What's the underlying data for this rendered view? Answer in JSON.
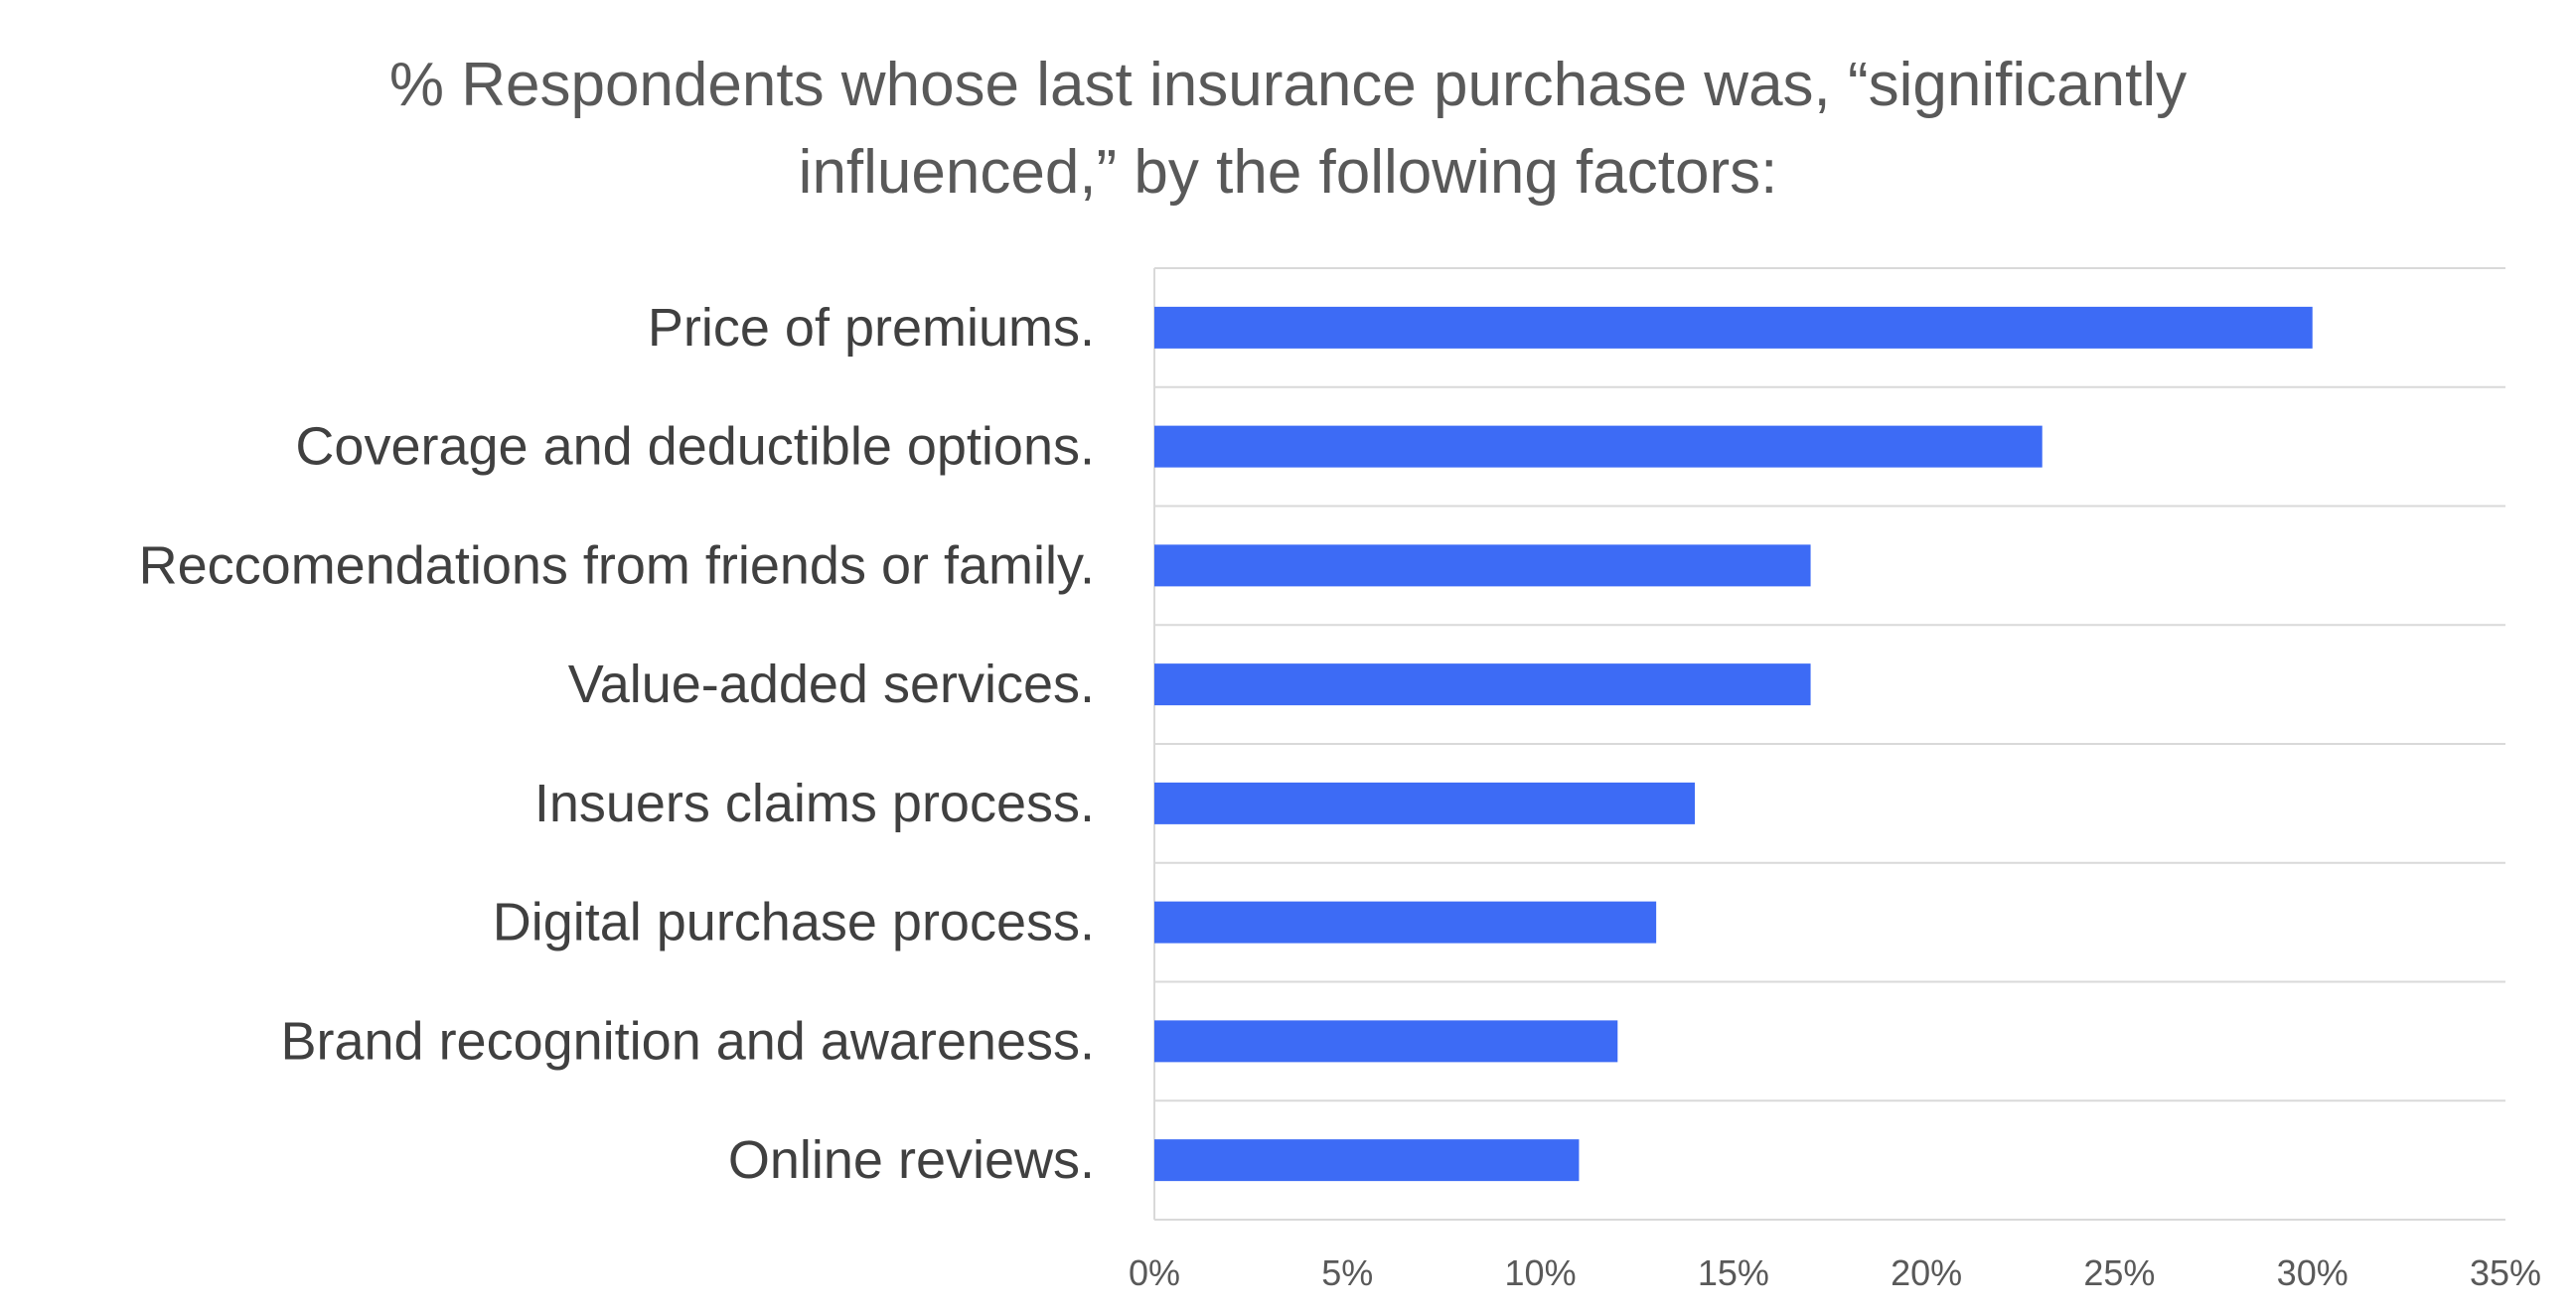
{
  "chart_data": {
    "type": "bar",
    "orientation": "horizontal",
    "title_lines": [
      "% Respondents whose last insurance purchase was, “significantly",
      "influenced,” by the following factors:"
    ],
    "categories": [
      "Price of premiums.",
      "Coverage and deductible options.",
      "Reccomendations from friends or family.",
      "Value-added services.",
      "Insuers claims process.",
      "Digital purchase process.",
      "Brand recognition and awareness.",
      "Online reviews."
    ],
    "values": [
      30,
      23,
      17,
      17,
      14,
      13,
      12,
      11
    ],
    "unit": "%",
    "xlim": [
      0,
      35
    ],
    "xticks": [
      0,
      5,
      10,
      15,
      20,
      25,
      30,
      35
    ],
    "xtick_labels": [
      "0%",
      "5%",
      "10%",
      "15%",
      "20%",
      "25%",
      "30%",
      "35%"
    ],
    "grid": true,
    "bar_color": "#3d6bf5",
    "grid_color": "#d9d9d9",
    "text_color": "#595959"
  }
}
